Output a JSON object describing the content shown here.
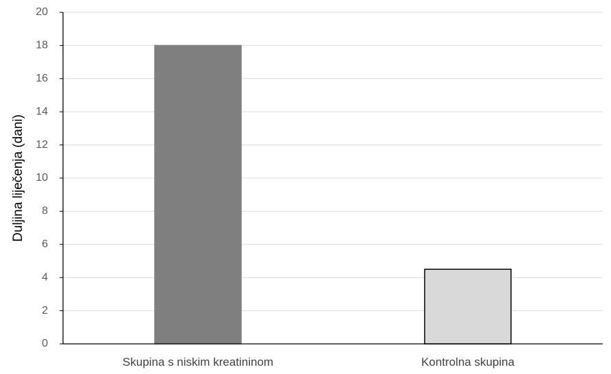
{
  "chart_data": {
    "type": "bar",
    "title": "",
    "xlabel": "",
    "ylabel": "Duljina liječenja (dani)",
    "ylim": [
      0,
      20
    ],
    "yticks": [
      0,
      2,
      4,
      6,
      8,
      10,
      12,
      14,
      16,
      18,
      20
    ],
    "grid": true,
    "categories": [
      "Skupina s niskim kreatininom",
      "Kontrolna skupina"
    ],
    "values": [
      18,
      4.5
    ],
    "bar_colors": [
      "#7f7f7f",
      "#d9d9d9"
    ],
    "bar_edge_colors": [
      "#7f7f7f",
      "#000000"
    ],
    "colors": {
      "grid": "#d9d9d9",
      "axis": "#000000"
    }
  }
}
